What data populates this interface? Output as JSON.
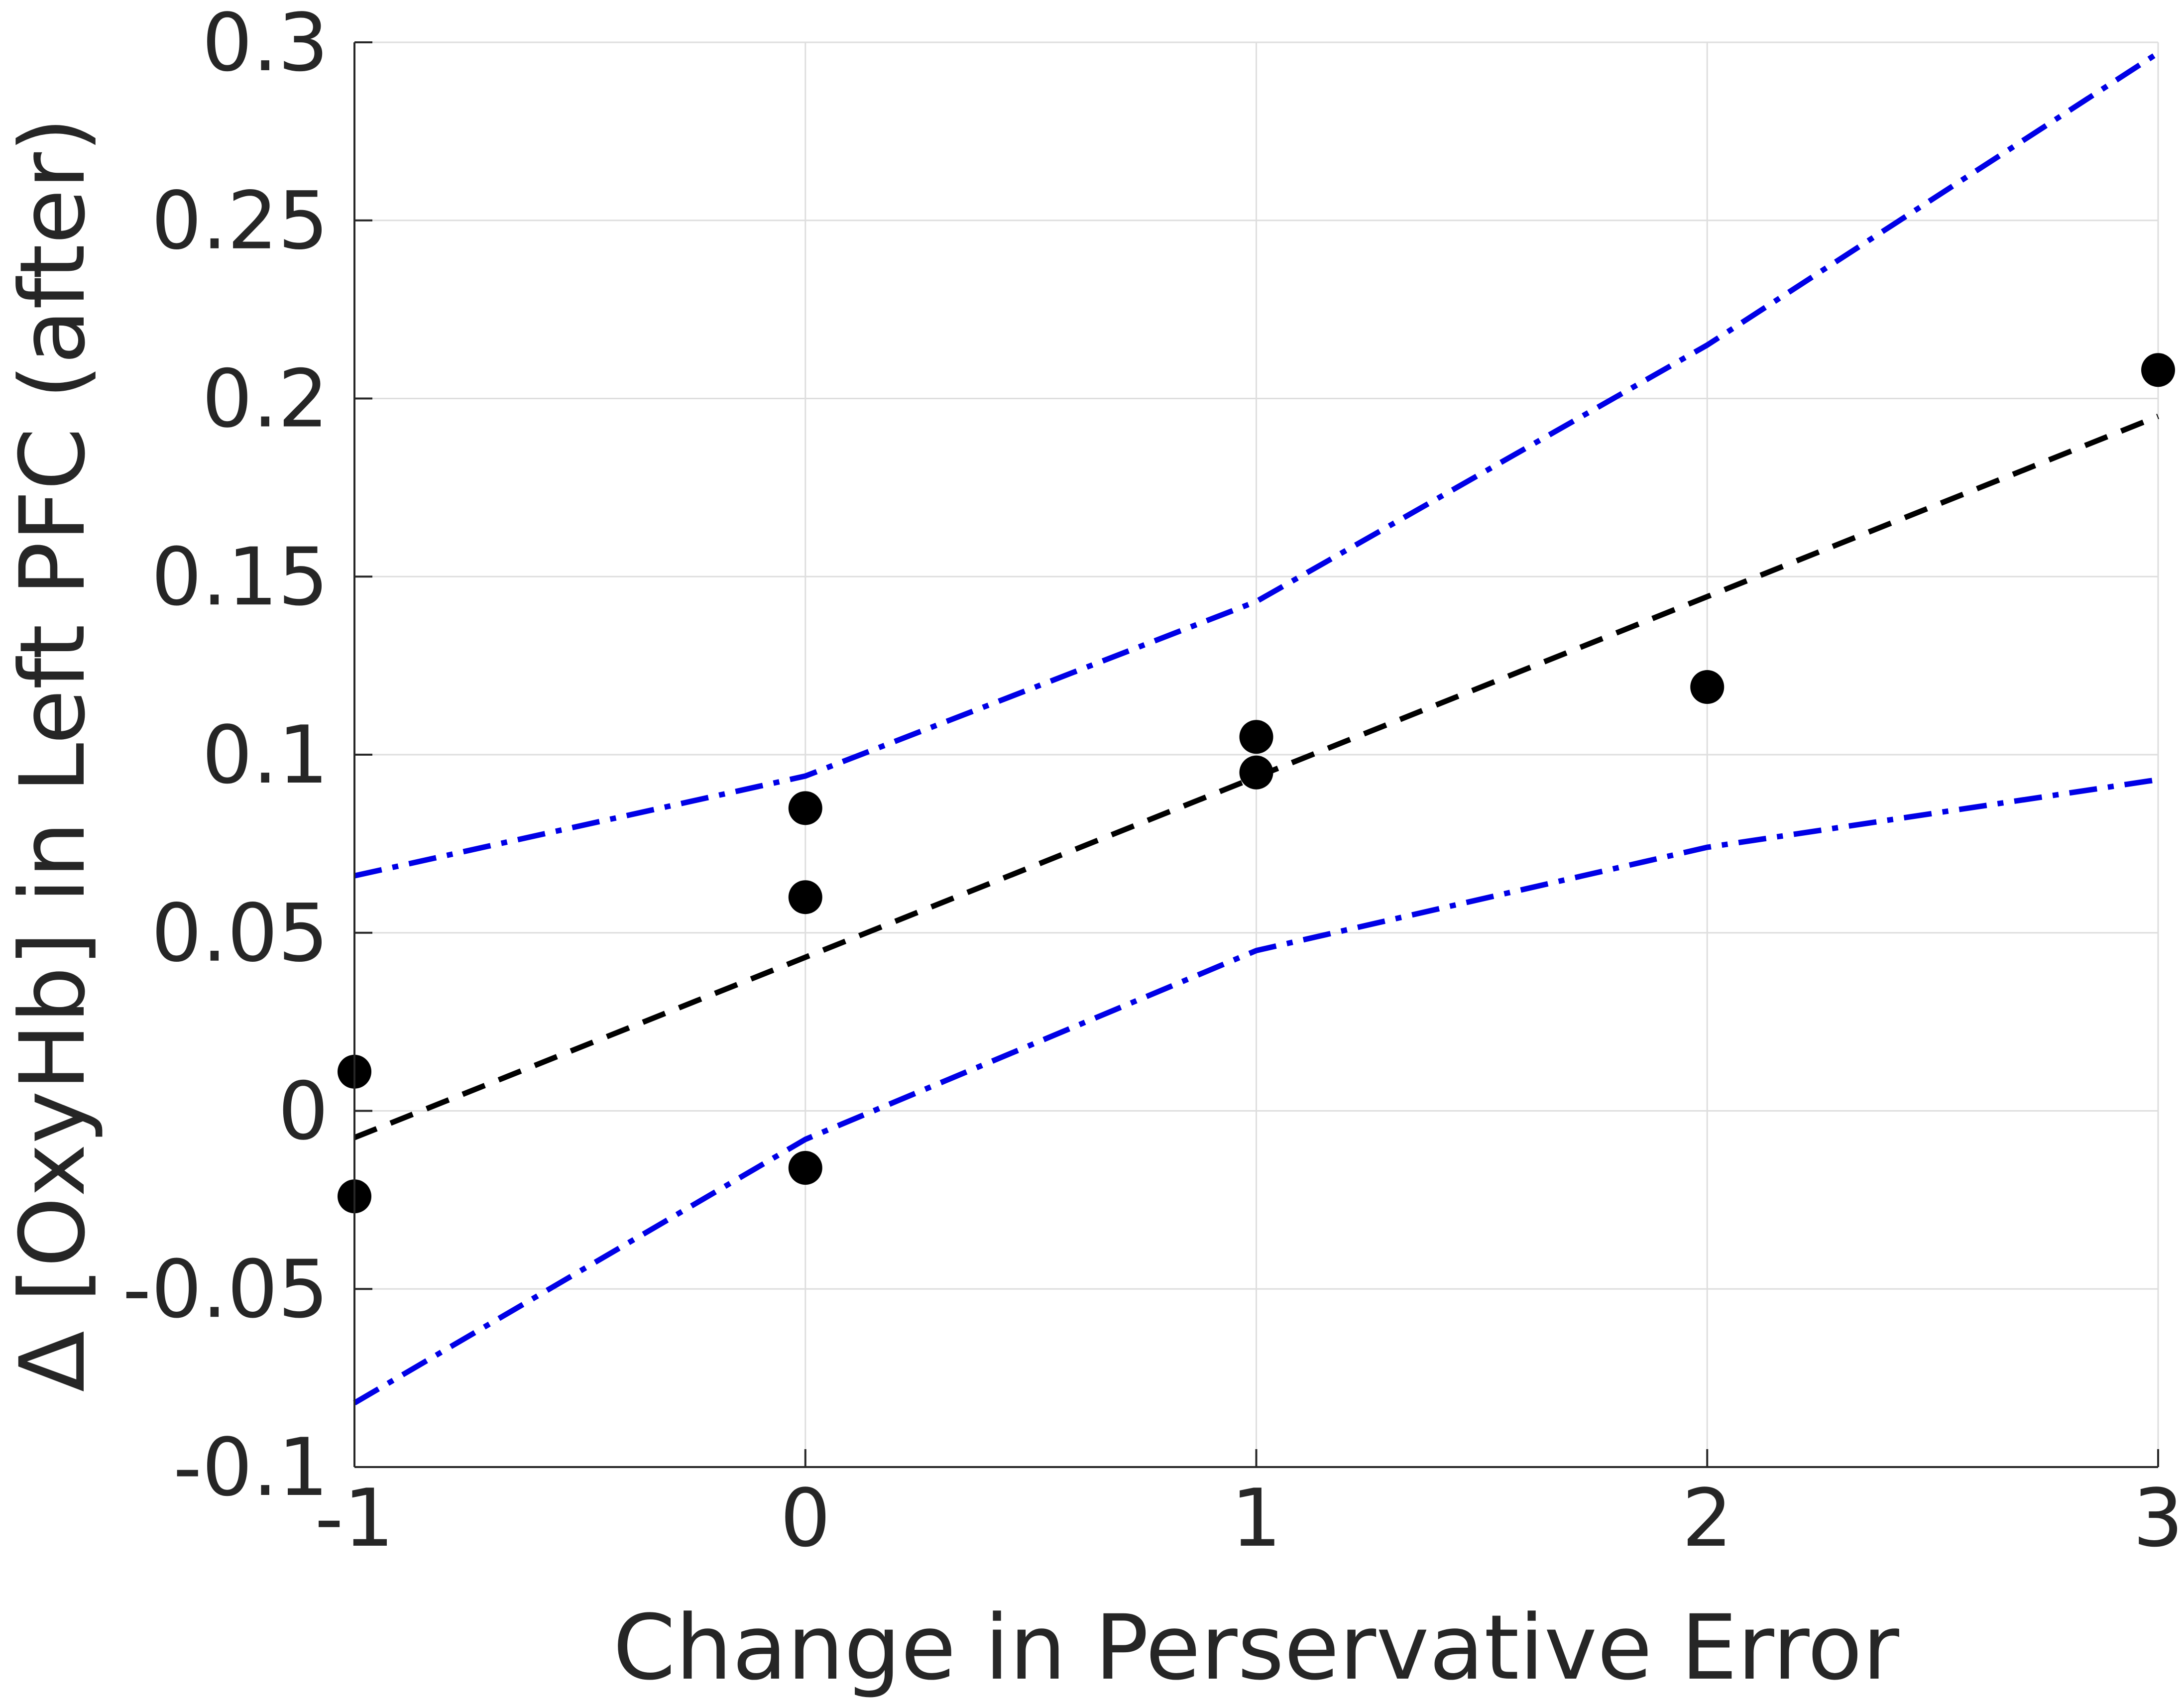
{
  "chart_data": {
    "type": "scatter",
    "title": "",
    "xlabel": "Change in Perservative Error",
    "ylabel": "Δ [OxyHb] in Left PFC (after)",
    "xlim": [
      -1,
      3
    ],
    "ylim": [
      -0.1,
      0.3
    ],
    "grid": true,
    "x_ticks": [
      -1,
      0,
      1,
      2,
      3
    ],
    "x_tick_labels": [
      "-1",
      "0",
      "1",
      "2",
      "3"
    ],
    "y_ticks": [
      -0.1,
      -0.05,
      0,
      0.05,
      0.1,
      0.15,
      0.2,
      0.25,
      0.3
    ],
    "y_tick_labels": [
      "-0.1",
      "-0.05",
      "0",
      "0.05",
      "0.1",
      "0.15",
      "0.2",
      "0.25",
      "0.3"
    ],
    "series": [
      {
        "type": "scatter",
        "color": "#000000",
        "points": [
          {
            "x": -1,
            "y": 0.011
          },
          {
            "x": -1,
            "y": -0.024
          },
          {
            "x": 0,
            "y": 0.085
          },
          {
            "x": 0,
            "y": 0.06
          },
          {
            "x": 0,
            "y": -0.016
          },
          {
            "x": 1,
            "y": 0.105
          },
          {
            "x": 1,
            "y": 0.095
          },
          {
            "x": 2,
            "y": 0.119
          },
          {
            "x": 3,
            "y": 0.208
          }
        ]
      },
      {
        "type": "line",
        "style": "dashed",
        "color": "#000000",
        "x": [
          -1,
          3
        ],
        "y": [
          -0.0075,
          0.195
        ]
      },
      {
        "type": "line",
        "style": "dash-dot",
        "color": "#0000e6",
        "x": [
          -1,
          0,
          1,
          2,
          3
        ],
        "y": [
          0.066,
          0.094,
          0.143,
          0.215,
          0.297
        ]
      },
      {
        "type": "line",
        "style": "dash-dot",
        "color": "#0000e6",
        "x": [
          -1,
          0,
          1,
          2,
          3
        ],
        "y": [
          -0.082,
          -0.008,
          0.045,
          0.074,
          0.093
        ]
      }
    ]
  }
}
